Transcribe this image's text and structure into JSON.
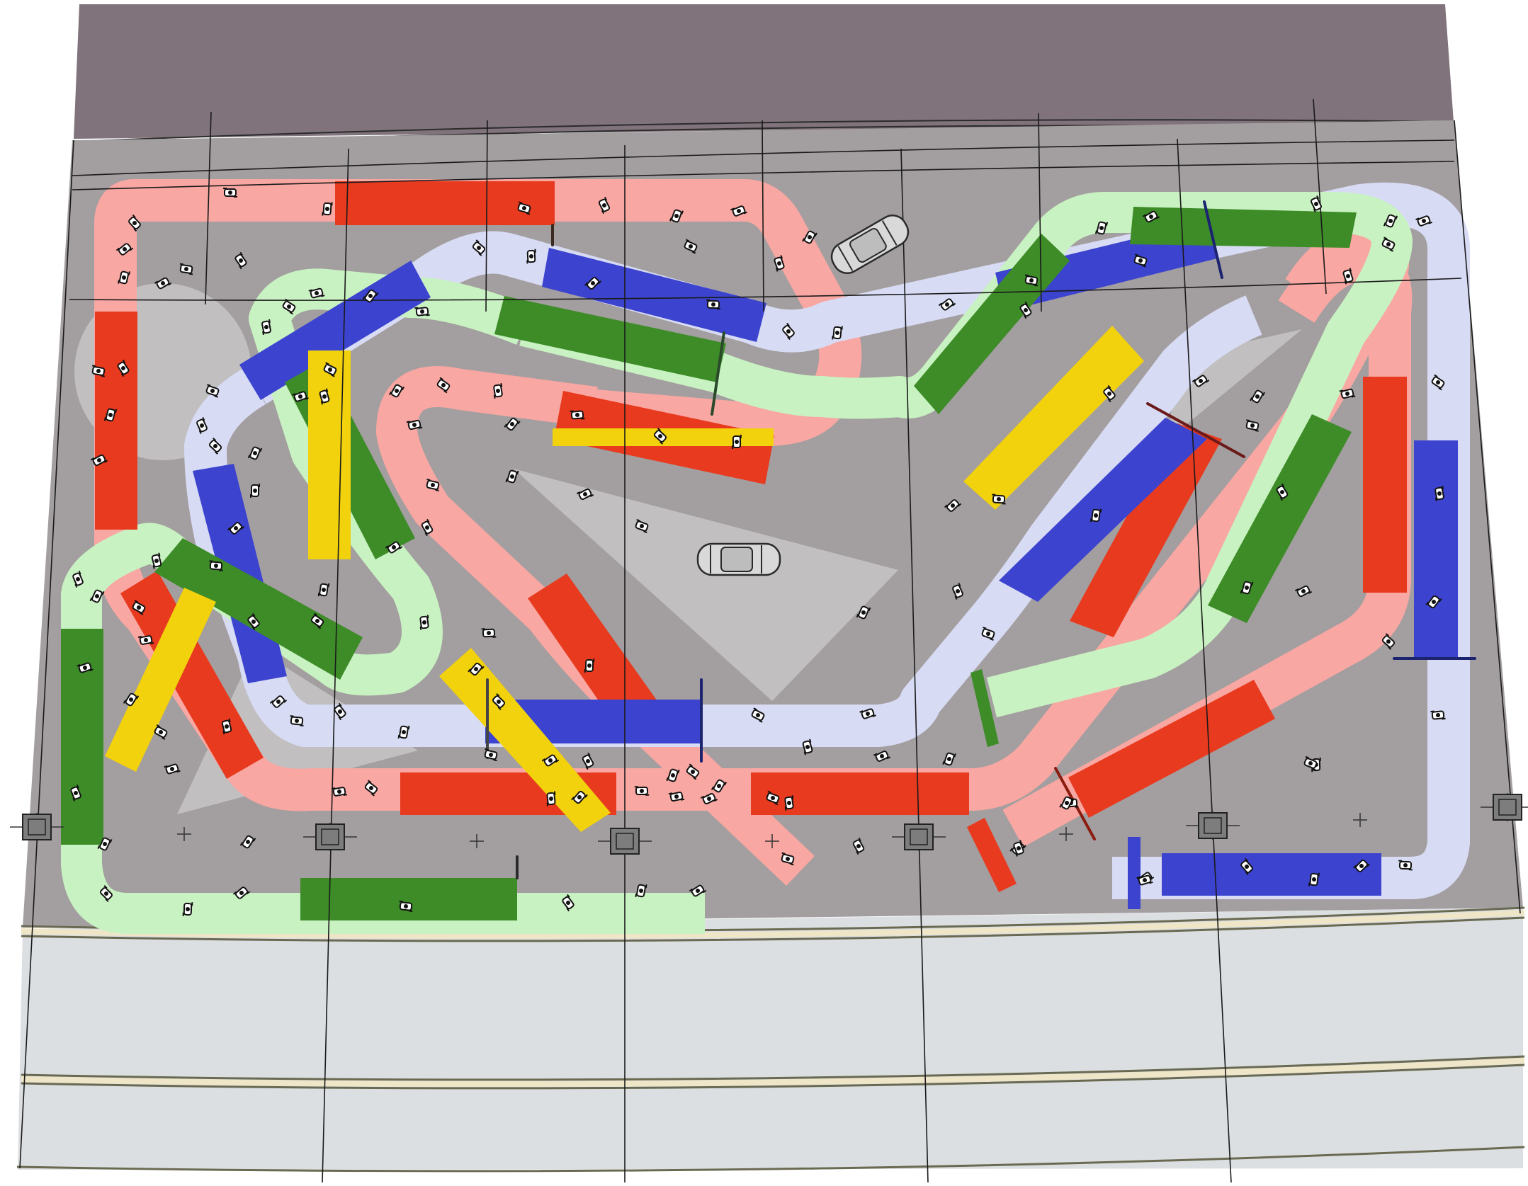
{
  "diagram": {
    "kind": "karting track layout plan (top view)",
    "colors": {
      "background": "#ffffff",
      "roof": "#80737b",
      "floor": "#a39e9f",
      "floor_light": "#c1bfc0",
      "apron": "#dcdfe1",
      "pink": "#f9a7a2",
      "red": "#e83a1f",
      "light_green": "#c9f2c2",
      "green": "#3d8c28",
      "lavender": "#d7dbf4",
      "blue": "#3c44cf",
      "yellow": "#f2d10d",
      "grid_line": "#1a1a1a"
    },
    "items": {
      "vehicles": [
        "car-icon",
        "car-icon"
      ],
      "structural": [
        "column-icon"
      ],
      "riders": "kart-icon"
    }
  }
}
